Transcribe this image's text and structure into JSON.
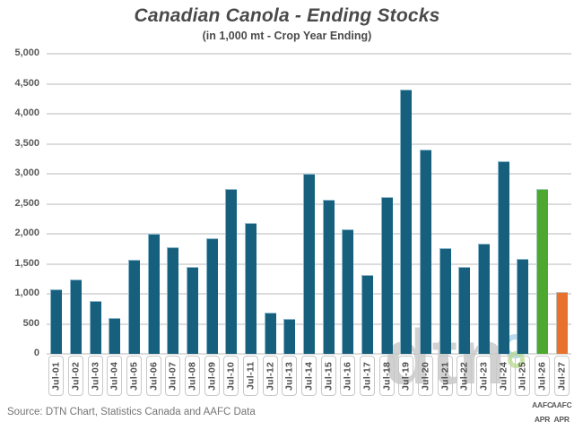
{
  "header": {
    "title": "Canadian Canola - Ending Stocks",
    "subtitle": "(in 1,000 mt - Crop Year Ending)"
  },
  "footer": {
    "source": "Source: DTN Chart, Statistics Canada and AAFC Data"
  },
  "watermark": {
    "text": "dtn"
  },
  "colors": {
    "bar_default": "#16607E",
    "bar_forecast_green": "#4EA72E",
    "bar_forecast_orange": "#E8722D",
    "gridline": "#dcdcdc",
    "text": "#4a4a4a"
  },
  "chart_data": {
    "type": "bar",
    "title": "Canadian Canola - Ending Stocks",
    "subtitle": "(in 1,000 mt - Crop Year Ending)",
    "xlabel": "",
    "ylabel": "",
    "ylim": [
      0,
      5000
    ],
    "ytick_step": 500,
    "grid": true,
    "legend": "none",
    "categories": [
      "Jul-01",
      "Jul-02",
      "Jul-03",
      "Jul-04",
      "Jul-05",
      "Jul-06",
      "Jul-07",
      "Jul-08",
      "Jul-09",
      "Jul-10",
      "Jul-11",
      "Jul-12",
      "Jul-13",
      "Jul-14",
      "Jul-15",
      "Jul-16",
      "Jul-17",
      "Jul-18",
      "Jul-19",
      "Jul-20",
      "Jul-21",
      "Jul-22",
      "Jul-23",
      "Jul-24",
      "Jul-25",
      "Jul-26",
      "Jul-27"
    ],
    "values": [
      1080,
      1240,
      880,
      600,
      1570,
      2000,
      1780,
      1450,
      1930,
      2740,
      2180,
      690,
      580,
      3000,
      2560,
      2070,
      1320,
      2610,
      4400,
      3410,
      1760,
      1450,
      1840,
      3210,
      1575,
      2750,
      1030
    ],
    "bar_color_default": "#16607E",
    "bar_color_overrides": {
      "Jul-26": "#4EA72E",
      "Jul-27": "#E8722D"
    },
    "sub_labels": [
      {
        "category": "Jul-26",
        "lines": [
          "AAFC",
          "APR"
        ]
      },
      {
        "category": "Jul-27",
        "lines": [
          "AAFC",
          "APR"
        ]
      }
    ]
  }
}
